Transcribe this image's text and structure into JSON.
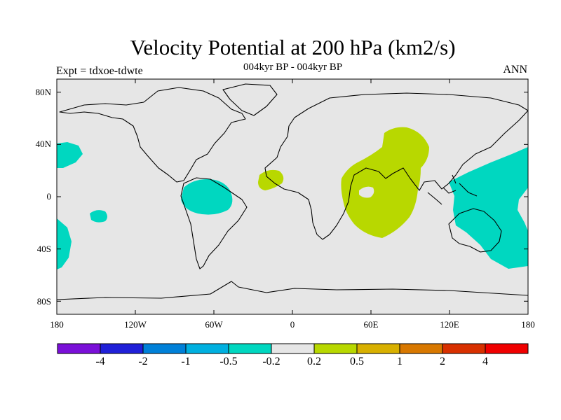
{
  "title": "Velocity Potential at 200 hPa (km2/s)",
  "subtitle": "004kyr BP - 004kyr BP",
  "left_string": "Expt = tdxoe-tdwte",
  "right_string": "ANN",
  "lat_labels": [
    "80N",
    "40N",
    "0",
    "40S",
    "80S"
  ],
  "lon_labels": [
    "180",
    "120W",
    "60W",
    "0",
    "60E",
    "120E",
    "180"
  ],
  "colors": {
    "background_field": "#e6e6e6",
    "negative_fill": "#00d7c0",
    "positive_fill": "#b8d800",
    "coastline": "#000000"
  },
  "colorbar": {
    "levels": [
      "-4",
      "-2",
      "-1",
      "-0.5",
      "-0.2",
      "0.2",
      "0.5",
      "1",
      "2",
      "4"
    ],
    "colors": [
      "#7a10d8",
      "#2020d8",
      "#0080d8",
      "#00b0e0",
      "#00d7c0",
      "#e6e6e6",
      "#b8d800",
      "#d8b000",
      "#d87800",
      "#d83000",
      "#f00000"
    ]
  }
}
